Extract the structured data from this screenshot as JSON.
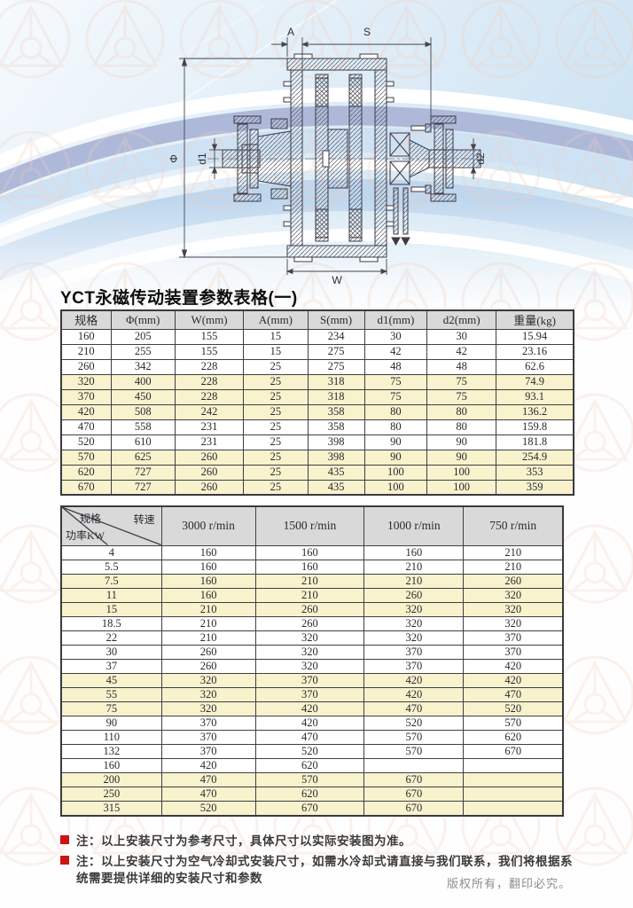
{
  "page": {
    "title": "YCT永磁传动装置参数表格(一)",
    "copyright": "版权所有，翻印必究。"
  },
  "colors": {
    "row_highlight": "#f8f2cd",
    "header_bg": "#d9d9d9",
    "note_bullet_red": "#cc1414",
    "banner_blue": "#cfe3f3",
    "banner_slate": "#a9b4d6",
    "watermark_pink": "#f0cdbd"
  },
  "drawing": {
    "dim_a": "A",
    "dim_s": "S",
    "dim_phi": "Φ",
    "dim_d1": "d1",
    "dim_d2": "d2",
    "dim_w": "W"
  },
  "table1": {
    "headers": [
      "规格",
      "Φ(mm)",
      "W(mm)",
      "A(mm)",
      "S(mm)",
      "d1(mm)",
      "d2(mm)",
      "重量(kg)"
    ],
    "rows": [
      {
        "hl": false,
        "cells": [
          "160",
          "205",
          "155",
          "15",
          "234",
          "30",
          "30",
          "15.94"
        ]
      },
      {
        "hl": false,
        "cells": [
          "210",
          "255",
          "155",
          "15",
          "275",
          "42",
          "42",
          "23.16"
        ]
      },
      {
        "hl": false,
        "cells": [
          "260",
          "342",
          "228",
          "25",
          "275",
          "48",
          "48",
          "62.6"
        ]
      },
      {
        "hl": true,
        "cells": [
          "320",
          "400",
          "228",
          "25",
          "318",
          "75",
          "75",
          "74.9"
        ]
      },
      {
        "hl": true,
        "cells": [
          "370",
          "450",
          "228",
          "25",
          "318",
          "75",
          "75",
          "93.1"
        ]
      },
      {
        "hl": true,
        "cells": [
          "420",
          "508",
          "242",
          "25",
          "358",
          "80",
          "80",
          "136.2"
        ]
      },
      {
        "hl": false,
        "cells": [
          "470",
          "558",
          "231",
          "25",
          "358",
          "80",
          "80",
          "159.8"
        ]
      },
      {
        "hl": false,
        "cells": [
          "520",
          "610",
          "231",
          "25",
          "398",
          "90",
          "90",
          "181.8"
        ]
      },
      {
        "hl": true,
        "cells": [
          "570",
          "625",
          "260",
          "25",
          "398",
          "90",
          "90",
          "254.9"
        ]
      },
      {
        "hl": true,
        "cells": [
          "620",
          "727",
          "260",
          "25",
          "435",
          "100",
          "100",
          "353"
        ]
      },
      {
        "hl": true,
        "cells": [
          "670",
          "727",
          "260",
          "25",
          "435",
          "100",
          "100",
          "359"
        ]
      }
    ]
  },
  "table2": {
    "corner": {
      "top_left": "规格",
      "top_right": "转速",
      "bottom_left": "功率KW"
    },
    "speed_headers": [
      "3000 r/min",
      "1500 r/min",
      "1000 r/min",
      "750 r/min"
    ],
    "rows": [
      {
        "hl": false,
        "cells": [
          "4",
          "160",
          "160",
          "160",
          "210"
        ]
      },
      {
        "hl": false,
        "cells": [
          "5.5",
          "160",
          "160",
          "210",
          "210"
        ]
      },
      {
        "hl": true,
        "cells": [
          "7.5",
          "160",
          "210",
          "210",
          "260"
        ]
      },
      {
        "hl": true,
        "cells": [
          "11",
          "160",
          "210",
          "260",
          "320"
        ]
      },
      {
        "hl": true,
        "cells": [
          "15",
          "210",
          "260",
          "320",
          "320"
        ]
      },
      {
        "hl": false,
        "cells": [
          "18.5",
          "210",
          "260",
          "320",
          "320"
        ]
      },
      {
        "hl": false,
        "cells": [
          "22",
          "210",
          "320",
          "320",
          "370"
        ]
      },
      {
        "hl": false,
        "cells": [
          "30",
          "260",
          "320",
          "370",
          "370"
        ]
      },
      {
        "hl": false,
        "cells": [
          "37",
          "260",
          "320",
          "370",
          "420"
        ]
      },
      {
        "hl": true,
        "cells": [
          "45",
          "320",
          "370",
          "420",
          "420"
        ]
      },
      {
        "hl": true,
        "cells": [
          "55",
          "320",
          "370",
          "420",
          "470"
        ]
      },
      {
        "hl": true,
        "cells": [
          "75",
          "320",
          "420",
          "470",
          "520"
        ]
      },
      {
        "hl": false,
        "cells": [
          "90",
          "370",
          "420",
          "520",
          "570"
        ]
      },
      {
        "hl": false,
        "cells": [
          "110",
          "370",
          "470",
          "570",
          "620"
        ]
      },
      {
        "hl": false,
        "cells": [
          "132",
          "370",
          "520",
          "570",
          "670"
        ]
      },
      {
        "hl": false,
        "cells": [
          "160",
          "420",
          "620",
          "",
          ""
        ]
      },
      {
        "hl": true,
        "cells": [
          "200",
          "470",
          "570",
          "670",
          ""
        ]
      },
      {
        "hl": true,
        "cells": [
          "250",
          "470",
          "620",
          "670",
          ""
        ]
      },
      {
        "hl": true,
        "cells": [
          "315",
          "520",
          "670",
          "670",
          ""
        ]
      }
    ]
  },
  "notes": [
    "注：以上安装尺寸为参考尺寸，具体尺寸以实际安装图为准。",
    "注：以上安装尺寸为空气冷却式安装尺寸，如需水冷却式请直接与我们联系，我们将根据系统需要提供详细的安装尺寸和参数"
  ]
}
